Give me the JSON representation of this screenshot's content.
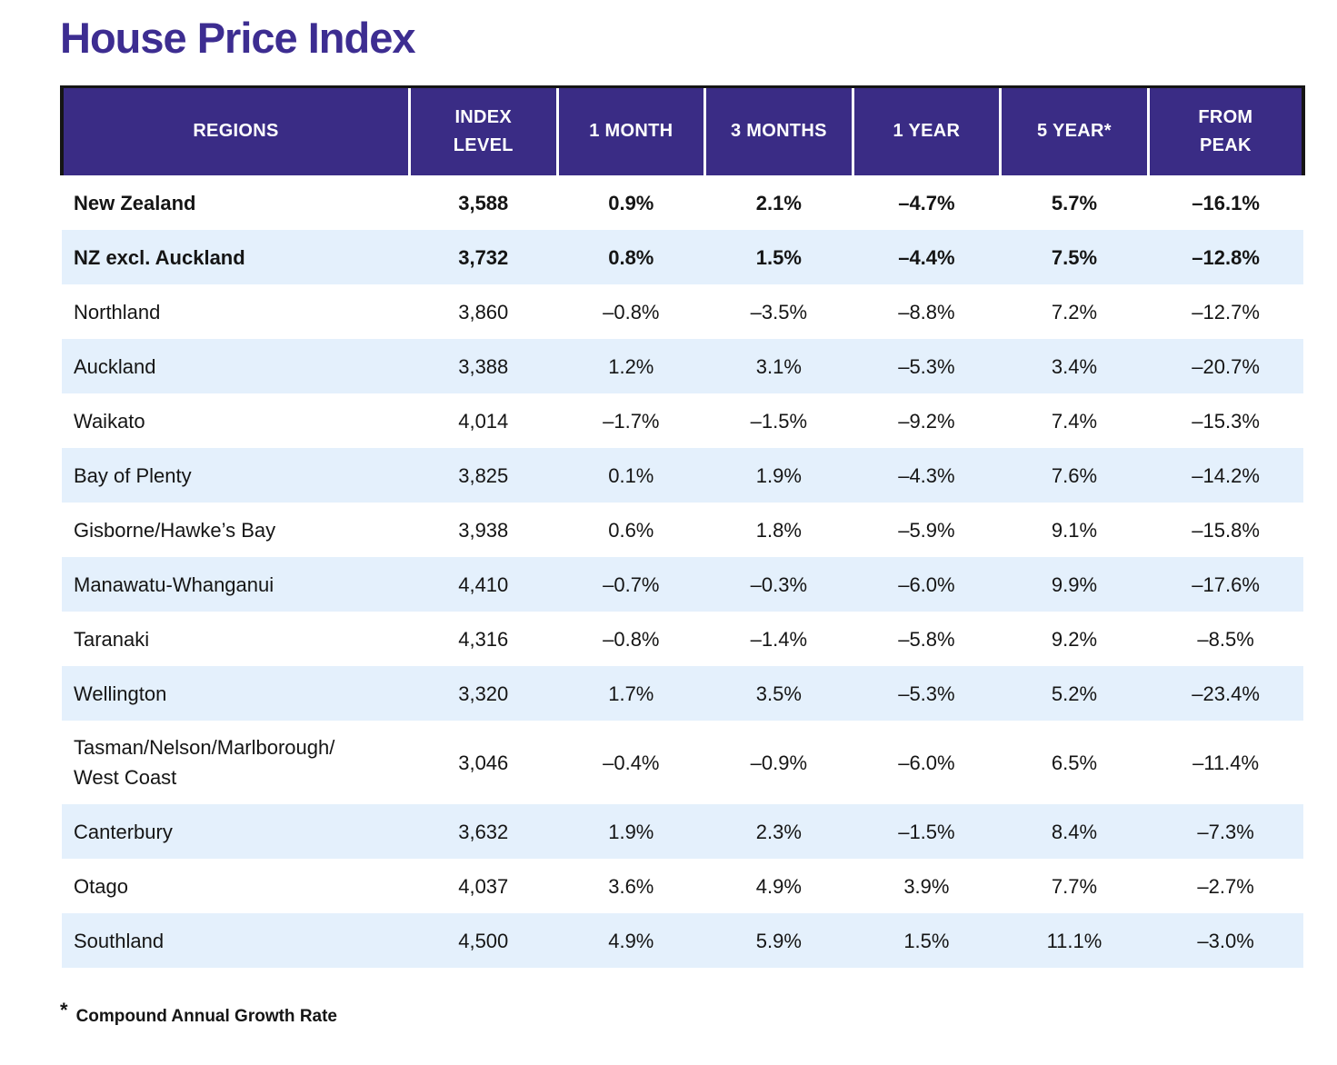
{
  "title": "House Price Index",
  "footnote": {
    "marker": "*",
    "text": "Compound Annual Growth Rate"
  },
  "colors": {
    "title_text": "#3D2D91",
    "header_bg": "#3A2C85",
    "header_text": "#FFFFFF",
    "stripe_row_bg": "#E4F0FC",
    "plain_row_bg": "#FFFFFF",
    "body_text": "#151515",
    "header_outline": "#151515"
  },
  "chart_data": {
    "type": "table",
    "title": "House Price Index",
    "columns": [
      "REGIONS",
      "INDEX LEVEL",
      "1 MONTH",
      "3 MONTHS",
      "1 YEAR",
      "5 YEAR*",
      "FROM PEAK"
    ],
    "footnote": "* Compound Annual Growth Rate",
    "rows": [
      [
        "New Zealand",
        "3,588",
        "0.9%",
        "2.1%",
        "–4.7%",
        "5.7%",
        "–16.1%"
      ],
      [
        "NZ excl. Auckland",
        "3,732",
        "0.8%",
        "1.5%",
        "–4.4%",
        "7.5%",
        "–12.8%"
      ],
      [
        "Northland",
        "3,860",
        "–0.8%",
        "–3.5%",
        "–8.8%",
        "7.2%",
        "–12.7%"
      ],
      [
        "Auckland",
        "3,388",
        "1.2%",
        "3.1%",
        "–5.3%",
        "3.4%",
        "–20.7%"
      ],
      [
        "Waikato",
        "4,014",
        "–1.7%",
        "–1.5%",
        "–9.2%",
        "7.4%",
        "–15.3%"
      ],
      [
        "Bay of Plenty",
        "3,825",
        "0.1%",
        "1.9%",
        "–4.3%",
        "7.6%",
        "–14.2%"
      ],
      [
        "Gisborne/Hawke’s Bay",
        "3,938",
        "0.6%",
        "1.8%",
        "–5.9%",
        "9.1%",
        "–15.8%"
      ],
      [
        "Manawatu-Whanganui",
        "4,410",
        "–0.7%",
        "–0.3%",
        "–6.0%",
        "9.9%",
        "–17.6%"
      ],
      [
        "Taranaki",
        "4,316",
        "–0.8%",
        "–1.4%",
        "–5.8%",
        "9.2%",
        "–8.5%"
      ],
      [
        "Wellington",
        "3,320",
        "1.7%",
        "3.5%",
        "–5.3%",
        "5.2%",
        "–23.4%"
      ],
      [
        "Tasman/Nelson/Marlborough/West Coast",
        "3,046",
        "–0.4%",
        "–0.9%",
        "–6.0%",
        "6.5%",
        "–11.4%"
      ],
      [
        "Canterbury",
        "3,632",
        "1.9%",
        "2.3%",
        "–1.5%",
        "8.4%",
        "–7.3%"
      ],
      [
        "Otago",
        "4,037",
        "3.6%",
        "4.9%",
        "3.9%",
        "7.7%",
        "–2.7%"
      ],
      [
        "Southland",
        "4,500",
        "4.9%",
        "5.9%",
        "1.5%",
        "11.1%",
        "–3.0%"
      ]
    ]
  },
  "table": {
    "headers": {
      "regions": "REGIONS",
      "index_level": "INDEX\nLEVEL",
      "m1": "1 MONTH",
      "m3": "3 MONTHS",
      "y1": "1 YEAR",
      "y5": "5 YEAR*",
      "from_peak": "FROM\nPEAK"
    },
    "rows": [
      {
        "region": "New Zealand",
        "index_level": "3,588",
        "m1": "0.9%",
        "m3": "2.1%",
        "y1": "–4.7%",
        "y5": "5.7%",
        "from_peak": "–16.1%"
      },
      {
        "region": "NZ excl. Auckland",
        "index_level": "3,732",
        "m1": "0.8%",
        "m3": "1.5%",
        "y1": "–4.4%",
        "y5": "7.5%",
        "from_peak": "–12.8%"
      },
      {
        "region": "Northland",
        "index_level": "3,860",
        "m1": "–0.8%",
        "m3": "–3.5%",
        "y1": "–8.8%",
        "y5": "7.2%",
        "from_peak": "–12.7%"
      },
      {
        "region": "Auckland",
        "index_level": "3,388",
        "m1": "1.2%",
        "m3": "3.1%",
        "y1": "–5.3%",
        "y5": "3.4%",
        "from_peak": "–20.7%"
      },
      {
        "region": "Waikato",
        "index_level": "4,014",
        "m1": "–1.7%",
        "m3": "–1.5%",
        "y1": "–9.2%",
        "y5": "7.4%",
        "from_peak": "–15.3%"
      },
      {
        "region": "Bay of Plenty",
        "index_level": "3,825",
        "m1": "0.1%",
        "m3": "1.9%",
        "y1": "–4.3%",
        "y5": "7.6%",
        "from_peak": "–14.2%"
      },
      {
        "region": "Gisborne/Hawke’s Bay",
        "index_level": "3,938",
        "m1": "0.6%",
        "m3": "1.8%",
        "y1": "–5.9%",
        "y5": "9.1%",
        "from_peak": "–15.8%"
      },
      {
        "region": "Manawatu-Whanganui",
        "index_level": "4,410",
        "m1": "–0.7%",
        "m3": "–0.3%",
        "y1": "–6.0%",
        "y5": "9.9%",
        "from_peak": "–17.6%"
      },
      {
        "region": "Taranaki",
        "index_level": "4,316",
        "m1": "–0.8%",
        "m3": "–1.4%",
        "y1": "–5.8%",
        "y5": "9.2%",
        "from_peak": "–8.5%"
      },
      {
        "region": "Wellington",
        "index_level": "3,320",
        "m1": "1.7%",
        "m3": "3.5%",
        "y1": "–5.3%",
        "y5": "5.2%",
        "from_peak": "–23.4%"
      },
      {
        "region": "Tasman/Nelson/Marlborough/\nWest Coast",
        "index_level": "3,046",
        "m1": "–0.4%",
        "m3": "–0.9%",
        "y1": "–6.0%",
        "y5": "6.5%",
        "from_peak": "–11.4%"
      },
      {
        "region": "Canterbury",
        "index_level": "3,632",
        "m1": "1.9%",
        "m3": "2.3%",
        "y1": "–1.5%",
        "y5": "8.4%",
        "from_peak": "–7.3%"
      },
      {
        "region": "Otago",
        "index_level": "4,037",
        "m1": "3.6%",
        "m3": "4.9%",
        "y1": "3.9%",
        "y5": "7.7%",
        "from_peak": "–2.7%"
      },
      {
        "region": "Southland",
        "index_level": "4,500",
        "m1": "4.9%",
        "m3": "5.9%",
        "y1": "1.5%",
        "y5": "11.1%",
        "from_peak": "–3.0%"
      }
    ]
  }
}
